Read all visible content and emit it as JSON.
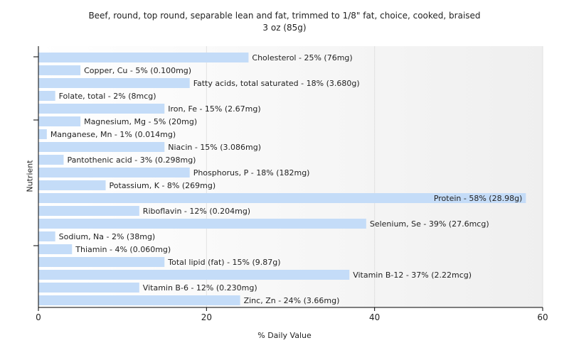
{
  "chart_data": {
    "type": "bar",
    "orientation": "horizontal",
    "title": "Beef, round, top round, separable lean and fat, trimmed to 1/8\" fat, choice, cooked, braised",
    "subtitle": "3 oz (85g)",
    "xlabel": "% Daily Value",
    "ylabel": "Nutrient",
    "xlim": [
      0,
      60
    ],
    "xticks": [
      0,
      20,
      40,
      60
    ],
    "grid": true,
    "bar_color": "#c4dcf8",
    "categories": [
      "Cholesterol",
      "Copper, Cu",
      "Fatty acids, total saturated",
      "Folate, total",
      "Iron, Fe",
      "Magnesium, Mg",
      "Manganese, Mn",
      "Niacin",
      "Pantothenic acid",
      "Phosphorus, P",
      "Potassium, K",
      "Protein",
      "Riboflavin",
      "Selenium, Se",
      "Sodium, Na",
      "Thiamin",
      "Total lipid (fat)",
      "Vitamin B-12",
      "Vitamin B-6",
      "Zinc, Zn"
    ],
    "values": [
      25,
      5,
      18,
      2,
      15,
      5,
      1,
      15,
      3,
      18,
      8,
      58,
      12,
      39,
      2,
      4,
      15,
      37,
      12,
      24
    ],
    "labels": [
      "Cholesterol - 25% (76mg)",
      "Copper, Cu - 5% (0.100mg)",
      "Fatty acids, total saturated - 18% (3.680g)",
      "Folate, total - 2% (8mcg)",
      "Iron, Fe - 15% (2.67mg)",
      "Magnesium, Mg - 5% (20mg)",
      "Manganese, Mn - 1% (0.014mg)",
      "Niacin - 15% (3.086mg)",
      "Pantothenic acid - 3% (0.298mg)",
      "Phosphorus, P - 18% (182mg)",
      "Potassium, K - 8% (269mg)",
      "Protein - 58% (28.98g)",
      "Riboflavin - 12% (0.204mg)",
      "Selenium, Se - 39% (27.6mcg)",
      "Sodium, Na - 2% (38mg)",
      "Thiamin - 4% (0.060mg)",
      "Total lipid (fat) - 15% (9.87g)",
      "Vitamin B-12 - 37% (2.22mcg)",
      "Vitamin B-6 - 12% (0.230mg)",
      "Zinc, Zn - 24% (3.66mg)"
    ]
  }
}
